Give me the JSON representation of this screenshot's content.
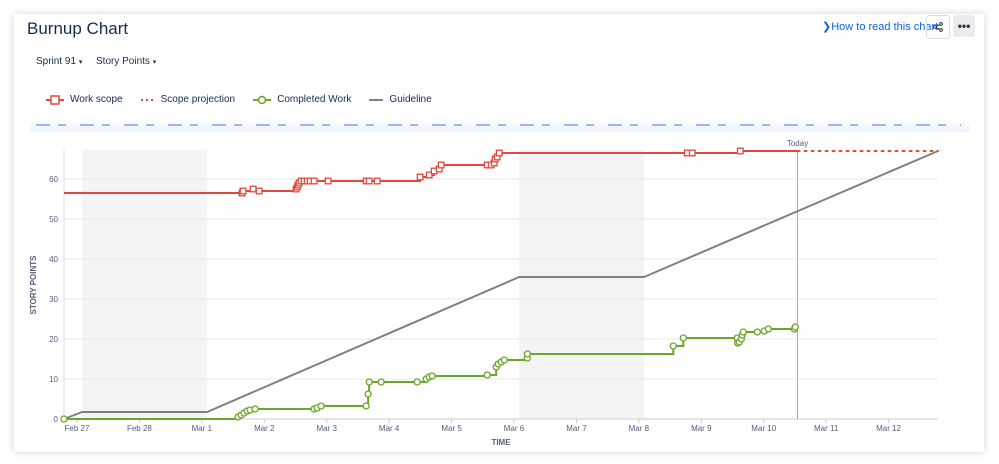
{
  "header": {
    "title": "Burnup Chart",
    "help_link": "How to read this chart",
    "share_icon": "share-icon",
    "more_icon": "more-horizontal-icon"
  },
  "filters": {
    "sprint": "Sprint 91",
    "estimation": "Story Points"
  },
  "colors": {
    "work_scope": "#e2483d",
    "completed": "#6aa728",
    "guideline": "#808080",
    "link": "#0c66e4",
    "nonworking": "#f4f4f4"
  },
  "chart_data": {
    "type": "line",
    "ylabel": "STORY POINTS",
    "xlabel": "TIME",
    "ylim": [
      0,
      67.25
    ],
    "xlim": [
      "Feb 26 19:00",
      "Mar 12 19:00"
    ],
    "yticks": [
      0,
      10,
      20,
      30,
      40,
      50,
      60
    ],
    "xticks": [
      "Feb 27",
      "Feb 28",
      "Mar 1",
      "Mar 2",
      "Mar 3",
      "Mar 4",
      "Mar 5",
      "Mar 6",
      "Mar 7",
      "Mar 8",
      "Mar 9",
      "Mar 10",
      "Mar 11",
      "Mar 12"
    ],
    "grid": true,
    "legend_position": "top-left",
    "today": {
      "label": "Today",
      "x": "Mar 10 13:00"
    },
    "nonworking_periods": [
      [
        "Feb 27 02:00",
        "Mar 1 02:00"
      ],
      [
        "Mar 6 02:00",
        "Mar 8 02:00"
      ]
    ],
    "series": [
      {
        "name": "Work scope",
        "style": "step",
        "marker": "square",
        "points": [
          [
            "Feb 26 19:00",
            56.5
          ],
          [
            "Mar 1 15:27",
            56.5
          ],
          [
            "Mar 1 15:50",
            57
          ],
          [
            "Mar 1 19:42",
            57.5
          ],
          [
            "Mar 1 22:00",
            57
          ],
          [
            "Mar 2 12:14",
            57.5
          ],
          [
            "Mar 2 12:40",
            58
          ],
          [
            "Mar 2 13:00",
            58.5
          ],
          [
            "Mar 2 13:23",
            59
          ],
          [
            "Mar 2 14:09",
            59.5
          ],
          [
            "Mar 2 15:18",
            59.5
          ],
          [
            "Mar 2 16:28",
            59.5
          ],
          [
            "Mar 2 17:37",
            59.5
          ],
          [
            "Mar 2 19:09",
            59.5
          ],
          [
            "Mar 3 00:32",
            59.5
          ],
          [
            "Mar 3 15:09",
            59.5
          ],
          [
            "Mar 3 16:18",
            59.5
          ],
          [
            "Mar 3 19:23",
            59.5
          ],
          [
            "Mar 4 11:55",
            60.5
          ],
          [
            "Mar 4 15:23",
            61
          ],
          [
            "Mar 4 17:18",
            62
          ],
          [
            "Mar 4 19:14",
            62.5
          ],
          [
            "Mar 4 20:00",
            63.5
          ],
          [
            "Mar 5 13:42",
            63.5
          ],
          [
            "Mar 5 15:14",
            63.5
          ],
          [
            "Mar 5 16:23",
            64
          ],
          [
            "Mar 5 16:46",
            65
          ],
          [
            "Mar 5 17:32",
            65.5
          ],
          [
            "Mar 5 18:18",
            66.5
          ],
          [
            "Mar 8 18:37",
            66.5
          ],
          [
            "Mar 8 20:32",
            66.5
          ],
          [
            "Mar 9 15:00",
            67
          ],
          [
            "Mar 10 13:00",
            67
          ]
        ]
      },
      {
        "name": "Scope projection",
        "style": "dotted",
        "points": [
          [
            "Mar 10 13:00",
            67
          ],
          [
            "Mar 12 19:00",
            67
          ]
        ]
      },
      {
        "name": "Completed Work",
        "style": "step",
        "marker": "circle",
        "points": [
          [
            "Feb 26 19:00",
            0
          ],
          [
            "Mar 1 13:55",
            0.5
          ],
          [
            "Mar 1 15:05",
            1
          ],
          [
            "Mar 1 16:13",
            1.5
          ],
          [
            "Mar 1 17:23",
            2
          ],
          [
            "Mar 1 18:32",
            2.25
          ],
          [
            "Mar 1 20:28",
            2.5
          ],
          [
            "Mar 2 19:09",
            2.5
          ],
          [
            "Mar 2 20:18",
            2.75
          ],
          [
            "Mar 2 21:50",
            3.25
          ],
          [
            "Mar 3 15:09",
            3.25
          ],
          [
            "Mar 3 15:55",
            6.25
          ],
          [
            "Mar 3 16:18",
            9.25
          ],
          [
            "Mar 3 20:55",
            9.25
          ],
          [
            "Mar 4 10:46",
            9.25
          ],
          [
            "Mar 4 14:14",
            10
          ],
          [
            "Mar 4 15:23",
            10.5
          ],
          [
            "Mar 4 16:32",
            10.75
          ],
          [
            "Mar 5 13:42",
            11
          ],
          [
            "Mar 5 17:09",
            13
          ],
          [
            "Mar 5 17:55",
            13.75
          ],
          [
            "Mar 5 19:05",
            14.25
          ],
          [
            "Mar 5 20:14",
            14.75
          ],
          [
            "Mar 6 05:05",
            15.25
          ],
          [
            "Mar 6 05:10",
            16.25
          ],
          [
            "Mar 8 13:14",
            18.25
          ],
          [
            "Mar 8 17:05",
            20.25
          ],
          [
            "Mar 9 13:51",
            20.25
          ],
          [
            "Mar 9 14:00",
            19
          ],
          [
            "Mar 9 14:37",
            19.25
          ],
          [
            "Mar 9 15:23",
            20
          ],
          [
            "Mar 9 15:46",
            21
          ],
          [
            "Mar 9 16:09",
            21.75
          ],
          [
            "Mar 9 21:32",
            21.75
          ],
          [
            "Mar 10 00:14",
            22
          ],
          [
            "Mar 10 01:46",
            22.5
          ],
          [
            "Mar 10 11:46",
            22.5
          ],
          [
            "Mar 10 12:09",
            23
          ]
        ]
      },
      {
        "name": "Guideline",
        "style": "linear",
        "points": [
          [
            "Feb 26 19:00",
            0
          ],
          [
            "Feb 27 02:00",
            1.75
          ],
          [
            "Mar 1 02:00",
            1.75
          ],
          [
            "Mar 6 02:00",
            35.5
          ],
          [
            "Mar 8 02:00",
            35.5
          ],
          [
            "Mar 12 19:00",
            67
          ]
        ]
      }
    ]
  }
}
